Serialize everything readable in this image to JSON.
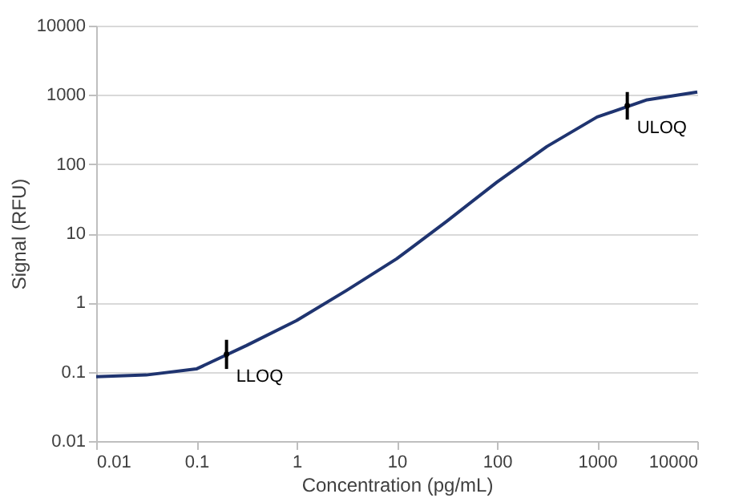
{
  "chart_data": {
    "type": "line",
    "xlabel": "Concentration (pg/mL)",
    "ylabel": "Signal (RFU)",
    "log": "xy",
    "grid": "y",
    "marker": "none",
    "line_style": "solid",
    "xlim": [
      0.01,
      10000
    ],
    "xticks": [
      0.01,
      0.1,
      1,
      10,
      100,
      1000,
      10000
    ],
    "ylim": [
      0.01,
      10000
    ],
    "yticks": [
      0.01,
      0.1,
      1,
      10,
      100,
      1000,
      10000
    ],
    "series": [
      {
        "color": "#1f3470",
        "x": [
          0.01,
          0.0316,
          0.1,
          0.316,
          1,
          3.16,
          10,
          31.6,
          100,
          316,
          1000,
          3160,
          10000
        ],
        "values": [
          0.085,
          0.09,
          0.11,
          0.24,
          0.55,
          1.5,
          4.3,
          15,
          55,
          180,
          480,
          850,
          1100
        ]
      },
      {
        "type": "scatter",
        "color": "#000000",
        "marker": "circle",
        "x": [
          0.2,
          2000
        ],
        "values": [
          0.18,
          700
        ],
        "errors": [
          [
            0.11,
            0.29
          ],
          [
            440,
            1100
          ]
        ]
      }
    ],
    "annotations": [
      {
        "text": "LLOQ",
        "x": 0.2,
        "y": 0.18
      },
      {
        "text": "ULOQ",
        "x": 2000,
        "y": 700
      }
    ]
  }
}
